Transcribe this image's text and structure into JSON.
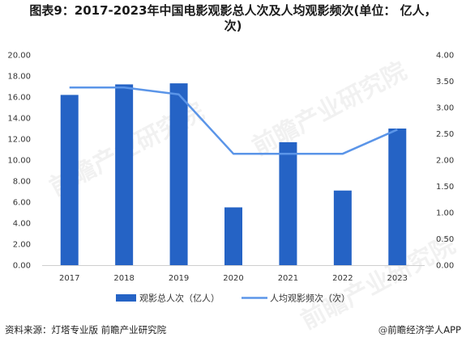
{
  "header": {
    "title_line1": "图表9：2017-2023年中国电影观影总人次及人均观影频次(单位： 亿人，",
    "title_line2": "次)"
  },
  "chart_data": {
    "type": "bar",
    "categories": [
      "2017",
      "2018",
      "2019",
      "2020",
      "2021",
      "2022",
      "2023"
    ],
    "series": [
      {
        "name": "观影总人次（亿人）",
        "type": "bar",
        "axis": "left",
        "color": "#2563c5",
        "values": [
          16.2,
          17.2,
          17.3,
          5.5,
          11.7,
          7.1,
          13.0
        ]
      },
      {
        "name": "人均观影频次（次）",
        "type": "line",
        "axis": "right",
        "color": "#5b95e8",
        "values": [
          3.38,
          3.38,
          3.25,
          2.12,
          2.12,
          2.12,
          2.58
        ]
      }
    ],
    "y_left": {
      "ylim": [
        0,
        20
      ],
      "ticks": [
        "0.00",
        "2.00",
        "4.00",
        "6.00",
        "8.00",
        "10.00",
        "12.00",
        "14.00",
        "16.00",
        "18.00",
        "20.00"
      ]
    },
    "y_right": {
      "ylim": [
        0,
        4
      ],
      "ticks": [
        "0.00",
        "0.50",
        "1.00",
        "1.50",
        "2.00",
        "2.50",
        "3.00",
        "3.50",
        "4.00"
      ]
    },
    "grid": false,
    "legend_position": "bottom"
  },
  "footer": {
    "source": "资料来源：灯塔专业版 前瞻产业研究院",
    "brand_at": "@",
    "brand": "前瞻经济学人APP"
  },
  "watermark": {
    "text": "前瞻产业研究院"
  }
}
